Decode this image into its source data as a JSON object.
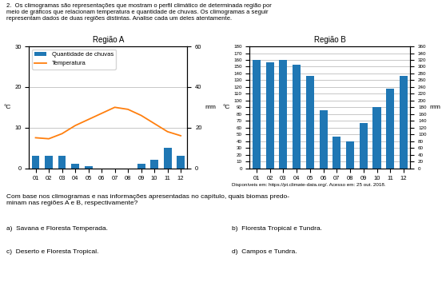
{
  "chart_data": [
    {
      "type": "bar",
      "title": "Região A",
      "categories": [
        "01",
        "02",
        "03",
        "04",
        "05",
        "06",
        "07",
        "08",
        "09",
        "10",
        "11",
        "12"
      ],
      "ylabel": "°C",
      "y2label": "mm",
      "series": [
        {
          "name": "Quantidade de chuvas",
          "type": "bar",
          "values": [
            3,
            3,
            3,
            1,
            0.5,
            0,
            0,
            0,
            1,
            2,
            5,
            3
          ]
        },
        {
          "name": "Temperatura",
          "type": "line",
          "axis": "y2",
          "values": [
            15,
            14.5,
            17,
            21,
            24,
            27,
            30,
            29,
            26,
            22,
            18,
            16
          ]
        }
      ],
      "ylim": [
        0,
        30
      ],
      "yticks": [
        0,
        10,
        20,
        30
      ],
      "y2lim": [
        0,
        60
      ],
      "y2ticks": [
        0,
        20,
        40,
        60
      ],
      "grid": true,
      "legend": "upper left",
      "annotations": [
        "2.  Os climogramas são representações que mostram o perfil climático de determinada região por\nmeio de gráficos que relacionam temperatura e quantidade de chuvas. Os climogramas a seguir\nrepresentam dados de duas regiões distintas. Analise cada um deles atentamente.",
        "Com base nos climogramas e nas informações apresentadas no capítulo, quais biomas predo-\nminam nas regiões A e B, respectivamente?",
        "a)  Savana e Floresta Temperada.",
        "c)  Deserto e Floresta Tropical.",
        "b)  Floresta Tropical e Tundra.",
        "d)  Campos e Tundra."
      ]
    },
    {
      "type": "bar",
      "title": "Região B",
      "categories": [
        "01",
        "02",
        "03",
        "04",
        "05",
        "06",
        "07",
        "08",
        "09",
        "10",
        "11",
        "12"
      ],
      "ylabel": "°C",
      "y2label": "mm",
      "series": [
        {
          "type": "bar",
          "values": [
            160,
            157,
            160,
            153,
            136,
            86,
            47,
            40,
            67,
            90,
            117,
            136
          ]
        }
      ],
      "ylim": [
        0,
        180
      ],
      "yticks": [
        0,
        10,
        20,
        30,
        40,
        50,
        60,
        70,
        80,
        90,
        100,
        110,
        120,
        130,
        140,
        150,
        160,
        170,
        180
      ],
      "y2lim": [
        0,
        360
      ],
      "y2ticks": [
        0,
        20,
        40,
        60,
        80,
        100,
        120,
        140,
        160,
        180,
        200,
        220,
        240,
        260,
        280,
        300,
        320,
        340,
        360
      ],
      "grid": true,
      "annotations": [
        "Disponíveis em: https://pt.climate-data.org/. Acesso em: 25 out. 2018."
      ]
    }
  ]
}
